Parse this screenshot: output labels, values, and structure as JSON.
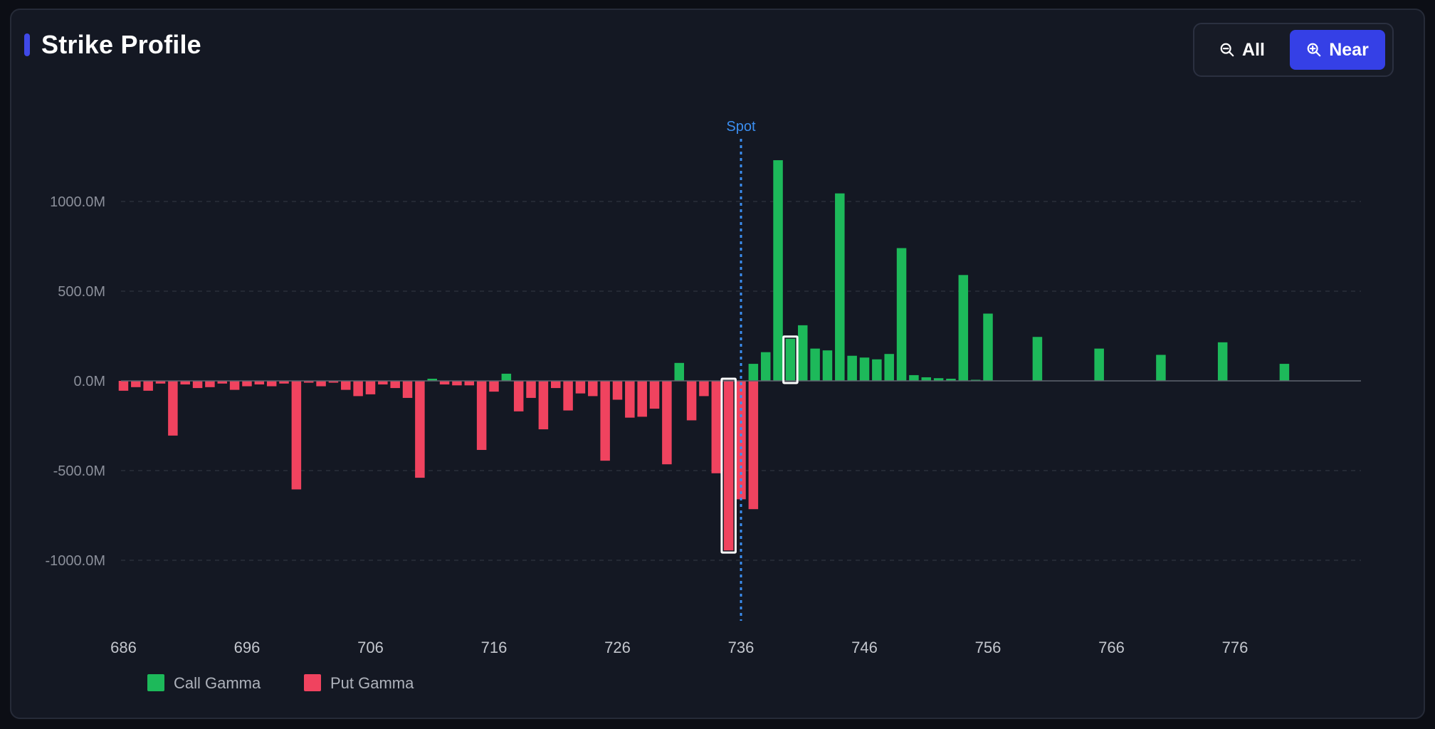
{
  "header": {
    "title": "Strike Profile"
  },
  "toggle": {
    "all_label": "All",
    "near_label": "Near",
    "active": "Near"
  },
  "colors": {
    "call": "#1db95a",
    "put": "#f0435f",
    "spot": "#3b8ef0",
    "background": "#141823",
    "accent": "#3f49e8"
  },
  "icons": {
    "all": "zoom-out-icon",
    "near": "zoom-in-icon"
  },
  "chart_data": {
    "type": "bar",
    "title": "",
    "xlabel": "",
    "ylabel": "",
    "x_ticks": [
      "686",
      "696",
      "706",
      "716",
      "726",
      "736",
      "746",
      "756",
      "766",
      "776"
    ],
    "y_ticks": [
      "1000.0M",
      "500.0M",
      "0.0M",
      "-500.0M",
      "-1000.0M"
    ],
    "ylim": [
      -1350,
      1250
    ],
    "xlim": [
      685.8,
      786.2
    ],
    "grid": true,
    "legend_position": "bottom-left",
    "spot": {
      "label": "Spot",
      "value": 736
    },
    "highlighted_strikes": [
      740,
      735
    ],
    "series": [
      {
        "name": "Call Gamma",
        "color": "#1db95a",
        "x": [
          711,
          717,
          731,
          737,
          738,
          739,
          740,
          741,
          742,
          743,
          744,
          745,
          746,
          747,
          748,
          749,
          750,
          751,
          752,
          753,
          754,
          755,
          756,
          760,
          765,
          770,
          775,
          780,
          785
        ],
        "values": [
          12,
          40,
          100,
          95,
          160,
          1230,
          235,
          310,
          180,
          170,
          1045,
          140,
          130,
          120,
          150,
          740,
          32,
          20,
          15,
          12,
          590,
          6,
          375,
          245,
          180,
          145,
          215,
          95,
          0
        ]
      },
      {
        "name": "Put Gamma",
        "color": "#f0435f",
        "x": [
          686,
          687,
          688,
          689,
          690,
          691,
          692,
          693,
          694,
          695,
          696,
          697,
          698,
          699,
          700,
          701,
          702,
          703,
          704,
          705,
          706,
          707,
          708,
          709,
          710,
          712,
          713,
          714,
          715,
          716,
          718,
          719,
          720,
          721,
          722,
          723,
          724,
          725,
          726,
          727,
          728,
          729,
          730,
          732,
          733,
          734,
          735,
          736,
          737
        ],
        "values": [
          -55,
          -35,
          -55,
          -15,
          -305,
          -20,
          -40,
          -35,
          -15,
          -50,
          -30,
          -20,
          -30,
          -15,
          -605,
          -10,
          -30,
          -10,
          -50,
          -85,
          -75,
          -20,
          -40,
          -95,
          -540,
          -20,
          -25,
          -25,
          -385,
          -60,
          -170,
          -95,
          -270,
          -40,
          -165,
          -70,
          -85,
          -445,
          -105,
          -205,
          -200,
          -155,
          -465,
          -220,
          -85,
          -515,
          -945,
          -660,
          -715
        ]
      }
    ]
  }
}
